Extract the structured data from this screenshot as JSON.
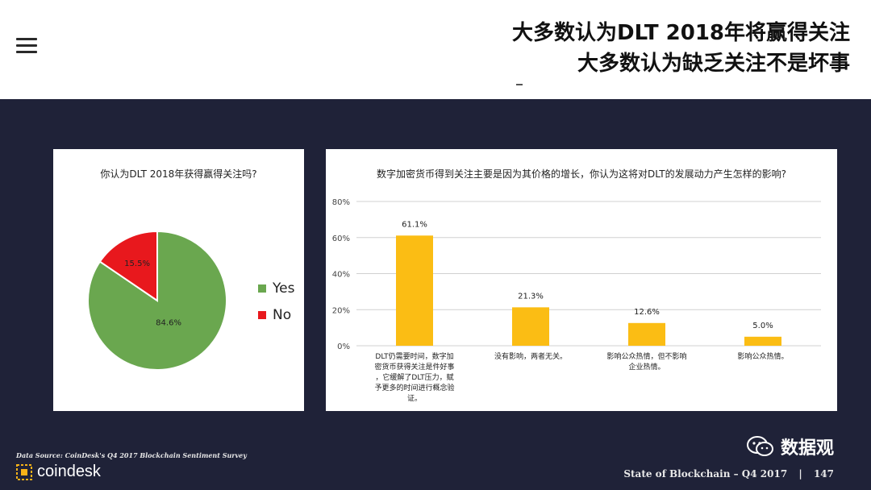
{
  "header": {
    "title_line1": "大多数认为DLT 2018年将赢得关注",
    "title_line2": "大多数认为缺乏关注不是坏事"
  },
  "colors": {
    "background": "#1f2238",
    "yes": "#6aa74f",
    "no": "#e8181d",
    "bar": "#fbbd14"
  },
  "chart_data": [
    {
      "type": "pie",
      "title": "你认为DLT 2018年获得赢得关注吗?",
      "slices": [
        {
          "name": "Yes",
          "value": 84.6,
          "label": "84.6%"
        },
        {
          "name": "No",
          "value": 15.5,
          "label": "15.5%"
        }
      ],
      "legend": [
        "Yes",
        "No"
      ],
      "legend_position": "right"
    },
    {
      "type": "bar",
      "title": "数字加密货币得到关注主要是因为其价格的增长，你认为这将对DLT的发展动力产生怎样的影响?",
      "categories": [
        [
          "DLT仍需要时间，数字加",
          "密货币获得关注是件好事",
          "，它缓解了DLT压力，赋",
          "予更多的时间进行概念验",
          "证。"
        ],
        [
          "没有影响，两者无关。"
        ],
        [
          "影响公众热情，但不影响",
          "企业热情。"
        ],
        [
          "影响公众热情。"
        ]
      ],
      "values": [
        61.1,
        21.3,
        12.6,
        5.0
      ],
      "value_labels": [
        "61.1%",
        "21.3%",
        "12.6%",
        "5.0%"
      ],
      "ylim": [
        0,
        80
      ],
      "yticks": [
        "0%",
        "20%",
        "40%",
        "60%",
        "80%"
      ],
      "grid": true
    }
  ],
  "footer": {
    "source": "Data Source: CoinDesk's Q4 2017 Blockchain Sentiment Survey",
    "brand": "coindesk",
    "report": "State of Blockchain – Q4 2017",
    "separator": "|",
    "page": "147",
    "wechat_label": "数据观"
  }
}
